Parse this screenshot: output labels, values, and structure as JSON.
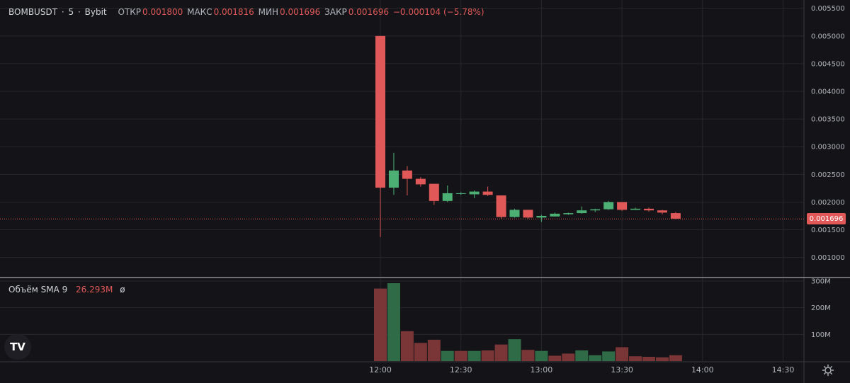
{
  "legend": {
    "symbol": "BOMBUSDT",
    "sep1": "·",
    "interval": "5",
    "sep2": "·",
    "exchange": "Bybit",
    "open_label": "ОТКР",
    "open_value": "0.001800",
    "high_label": "МАКС",
    "high_value": "0.001816",
    "low_label": "МИН",
    "low_value": "0.001696",
    "close_label": "ЗАКР",
    "close_value": "0.001696",
    "change_value": "−0.000104 (−5.78%)"
  },
  "volume_legend": {
    "name": "Объём SMA 9",
    "value": "26.293M",
    "symbol": "ø"
  },
  "last_price_label": "0.001696",
  "logo_text": "TV",
  "colors": {
    "up": "#4caf73",
    "down": "#e05858",
    "vol_up": "#2e6b46",
    "vol_down": "#7a3536",
    "grid": "#26262c",
    "axis_text": "#b2b5be",
    "last_price_line": "#e05858"
  },
  "chart_data": [
    {
      "type": "candlestick",
      "title": "",
      "x_ticks": [
        "12:00",
        "12:30",
        "13:00",
        "13:30",
        "14:00",
        "14:30"
      ],
      "y_ticks": [
        "0.001000",
        "0.001500",
        "0.002000",
        "0.002500",
        "0.003000",
        "0.003500",
        "0.004000",
        "0.004500",
        "0.005000",
        "0.005500"
      ],
      "ylim": [
        0.00065,
        0.00565
      ],
      "last_price": 0.001696,
      "candles": [
        {
          "t": "12:00",
          "o": 0.005,
          "h": 0.005,
          "l": 0.00137,
          "c": 0.00226
        },
        {
          "t": "12:05",
          "o": 0.00226,
          "h": 0.00289,
          "l": 0.00213,
          "c": 0.00257
        },
        {
          "t": "12:10",
          "o": 0.00257,
          "h": 0.00265,
          "l": 0.00212,
          "c": 0.00242
        },
        {
          "t": "12:15",
          "o": 0.00242,
          "h": 0.00245,
          "l": 0.00228,
          "c": 0.00232
        },
        {
          "t": "12:20",
          "o": 0.00233,
          "h": 0.00233,
          "l": 0.00195,
          "c": 0.00202
        },
        {
          "t": "12:25",
          "o": 0.00202,
          "h": 0.0023,
          "l": 0.002,
          "c": 0.00216
        },
        {
          "t": "12:30",
          "o": 0.00215,
          "h": 0.00218,
          "l": 0.00213,
          "c": 0.00216
        },
        {
          "t": "12:35",
          "o": 0.00214,
          "h": 0.00221,
          "l": 0.00207,
          "c": 0.00219
        },
        {
          "t": "12:40",
          "o": 0.00219,
          "h": 0.00228,
          "l": 0.00211,
          "c": 0.00213
        },
        {
          "t": "12:45",
          "o": 0.00212,
          "h": 0.00212,
          "l": 0.0017,
          "c": 0.00173
        },
        {
          "t": "12:50",
          "o": 0.00173,
          "h": 0.00188,
          "l": 0.00172,
          "c": 0.00186
        },
        {
          "t": "12:55",
          "o": 0.00186,
          "h": 0.00186,
          "l": 0.0017,
          "c": 0.00172
        },
        {
          "t": "13:00",
          "o": 0.00172,
          "h": 0.00177,
          "l": 0.00164,
          "c": 0.00175
        },
        {
          "t": "13:05",
          "o": 0.00174,
          "h": 0.00181,
          "l": 0.00174,
          "c": 0.00179
        },
        {
          "t": "13:10",
          "o": 0.00178,
          "h": 0.00181,
          "l": 0.00177,
          "c": 0.0018
        },
        {
          "t": "13:15",
          "o": 0.0018,
          "h": 0.00192,
          "l": 0.00179,
          "c": 0.00185
        },
        {
          "t": "13:20",
          "o": 0.00185,
          "h": 0.00188,
          "l": 0.00182,
          "c": 0.00187
        },
        {
          "t": "13:25",
          "o": 0.00187,
          "h": 0.00202,
          "l": 0.00186,
          "c": 0.002
        },
        {
          "t": "13:30",
          "o": 0.002,
          "h": 0.002,
          "l": 0.00184,
          "c": 0.00186
        },
        {
          "t": "13:35",
          "o": 0.00186,
          "h": 0.0019,
          "l": 0.00186,
          "c": 0.00188
        },
        {
          "t": "13:40",
          "o": 0.00188,
          "h": 0.0019,
          "l": 0.00183,
          "c": 0.00185
        },
        {
          "t": "13:45",
          "o": 0.00185,
          "h": 0.00186,
          "l": 0.00178,
          "c": 0.00181
        },
        {
          "t": "13:50",
          "o": 0.0018,
          "h": 0.00182,
          "l": 0.00169,
          "c": 0.0017
        }
      ]
    },
    {
      "type": "bar",
      "title": "",
      "y_ticks": [
        "100M",
        "200M",
        "300M"
      ],
      "ylim": [
        0,
        300
      ],
      "unit": "M",
      "values": [
        272,
        292,
        112,
        68,
        80,
        38,
        38,
        38,
        40,
        62,
        82,
        42,
        38,
        20,
        28,
        40,
        22,
        36,
        52,
        18,
        16,
        14,
        22
      ],
      "direction": [
        "down",
        "up",
        "down",
        "down",
        "down",
        "up",
        "down",
        "up",
        "down",
        "down",
        "up",
        "down",
        "up",
        "down",
        "down",
        "up",
        "up",
        "up",
        "down",
        "down",
        "down",
        "down",
        "down"
      ]
    }
  ]
}
